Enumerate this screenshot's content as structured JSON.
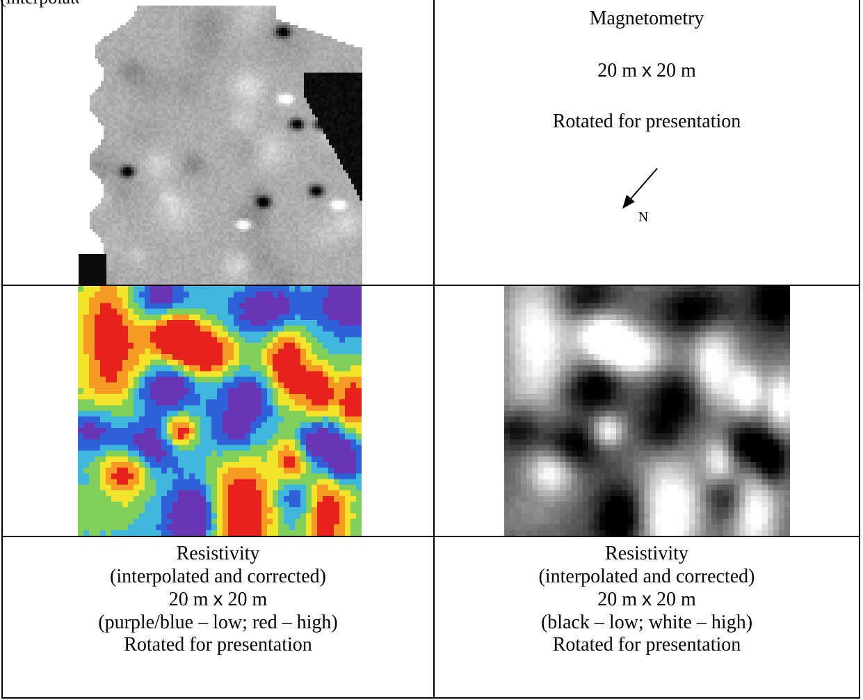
{
  "cut_text": "(interpolated and corrected)",
  "magnetometry": {
    "title": "Magnetometry",
    "size_prefix": "20 m ",
    "size_x": "x",
    "size_suffix": " 20 m",
    "rotated": "Rotated for presentation",
    "north_label": "N"
  },
  "resistivity_color": {
    "title": "Resistivity",
    "method": "(interpolated and corrected)",
    "size_prefix": "20 m ",
    "size_x": "x",
    "size_suffix": " 20 m",
    "scale": "(purple/blue – low; red – high)",
    "rotated": "Rotated for presentation"
  },
  "resistivity_gray": {
    "title": "Resistivity",
    "method": "(interpolated and corrected)",
    "size_prefix": "20 m ",
    "size_x": "x",
    "size_suffix": " 20 m",
    "scale": "(black – low; white – high)",
    "rotated": "Rotated for presentation"
  },
  "palette": {
    "low": "#6a35b5",
    "blue": "#2f62d8",
    "cyan": "#3fb7dd",
    "green": "#7fcf5a",
    "yellow": "#f2e52c",
    "orange": "#f59a23",
    "high": "#e8221d"
  }
}
